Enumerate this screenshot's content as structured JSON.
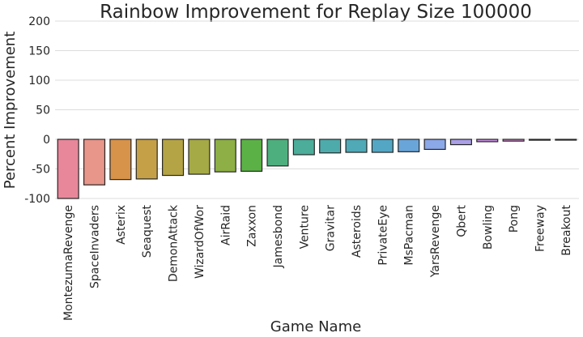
{
  "chart_data": {
    "type": "bar",
    "title": "Rainbow Improvement for Replay Size 100000",
    "xlabel": "Game Name",
    "ylabel": "Percent Improvement",
    "ylim": [
      -100,
      200
    ],
    "yticks": [
      "-100",
      "-50",
      "0",
      "50",
      "100",
      "150",
      "200"
    ],
    "grid": "horizontal",
    "categories": [
      "MontezumaRevenge",
      "SpaceInvaders",
      "Asterix",
      "Seaquest",
      "DemonAttack",
      "WizardOfWor",
      "AirRaid",
      "Zaxxon",
      "Jamesbond",
      "Venture",
      "Gravitar",
      "Asteroids",
      "PrivateEye",
      "MsPacman",
      "YarsRevenge",
      "Qbert",
      "Bowling",
      "Pong",
      "Freeway",
      "Breakout"
    ],
    "values": [
      -100,
      -77,
      -68,
      -67,
      -61,
      -59,
      -55,
      -54,
      -45,
      -26,
      -23,
      -22,
      -22,
      -21,
      -17,
      -9,
      -4,
      -3,
      -1.5,
      -0.5
    ],
    "colors": [
      "#e8879a",
      "#e8958a",
      "#d8934a",
      "#c6a046",
      "#b5a446",
      "#a6aa46",
      "#8daf46",
      "#5bb146",
      "#4eaf7e",
      "#4bad9a",
      "#4dabab",
      "#4fa9b6",
      "#53a7c4",
      "#6aa5d9",
      "#8ba8e8",
      "#ab9fe8",
      "#c98ee4",
      "#dd85d6",
      "#e588bf",
      "#e88aac"
    ]
  }
}
